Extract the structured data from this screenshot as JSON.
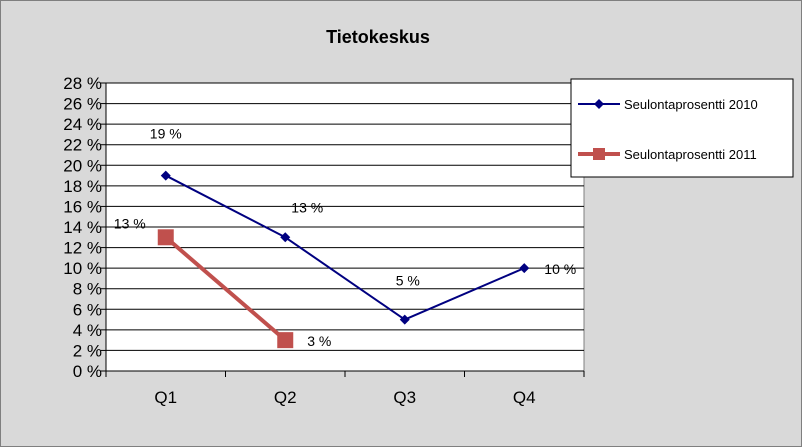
{
  "chart_data": {
    "type": "line",
    "title": "Tietokeskus",
    "categories": [
      "Q1",
      "Q2",
      "Q3",
      "Q4"
    ],
    "yticks": [
      "0 %",
      "2 %",
      "4 %",
      "6 %",
      "8 %",
      "10 %",
      "12 %",
      "14 %",
      "16 %",
      "18 %",
      "20 %",
      "22 %",
      "24 %",
      "26 %",
      "28 %"
    ],
    "ylim": [
      0,
      28
    ],
    "grid": true,
    "legend_position": "right",
    "series": [
      {
        "name": "Seulontaprosentti  2010",
        "values": [
          19,
          13,
          5,
          10
        ],
        "labels": [
          "19 %",
          "13 %",
          "5 %",
          "10 %"
        ],
        "color": "#000080",
        "marker": "diamond"
      },
      {
        "name": "Seulontaprosentti  2011",
        "values": [
          13,
          3,
          null,
          null
        ],
        "labels": [
          "13 %",
          "3 %",
          null,
          null
        ],
        "color": "#c0504d",
        "marker": "square"
      }
    ]
  }
}
